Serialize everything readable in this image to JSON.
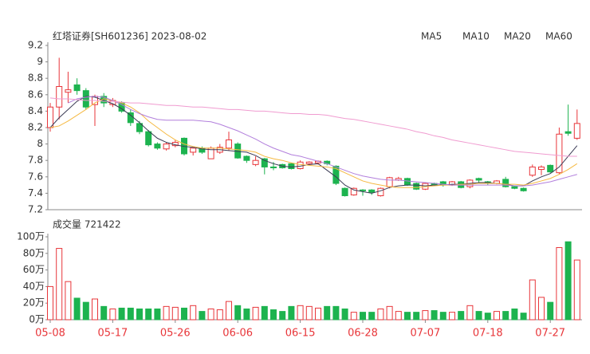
{
  "chart_data": [
    {
      "type": "candlestick",
      "title": "红塔证券[SH601236] 2023-08-02",
      "up_color": "#e8363a",
      "down_color": "#1db34f",
      "ylim": [
        7.2,
        9.2
      ],
      "yticks": [
        9.2,
        9,
        8.8,
        8.6,
        8.4,
        8.2,
        8,
        7.8,
        7.6,
        7.4,
        7.2
      ],
      "open": [
        8.2,
        8.45,
        8.63,
        8.72,
        8.65,
        8.48,
        8.58,
        8.48,
        8.5,
        8.38,
        8.25,
        8.15,
        8.0,
        7.94,
        7.98,
        8.07,
        7.9,
        7.95,
        7.82,
        7.9,
        7.95,
        8.0,
        7.85,
        7.75,
        7.82,
        7.72,
        7.75,
        7.76,
        7.7,
        7.76,
        7.77,
        7.79,
        7.73,
        7.46,
        7.38,
        7.44,
        7.44,
        7.37,
        7.48,
        7.56,
        7.58,
        7.52,
        7.45,
        7.52,
        7.54,
        7.5,
        7.54,
        7.48,
        7.58,
        7.54,
        7.52,
        7.57,
        7.48,
        7.46,
        7.62,
        7.69,
        7.74,
        7.65,
        8.15,
        8.07
      ],
      "high": [
        8.5,
        9.05,
        8.88,
        8.8,
        8.68,
        8.6,
        8.62,
        8.56,
        8.52,
        8.42,
        8.28,
        8.17,
        8.02,
        8.02,
        8.05,
        8.08,
        7.96,
        7.97,
        7.97,
        8.0,
        8.15,
        8.02,
        7.86,
        7.85,
        7.83,
        7.78,
        7.76,
        7.77,
        7.8,
        7.79,
        7.8,
        7.8,
        7.74,
        7.47,
        7.47,
        7.45,
        7.45,
        7.47,
        7.6,
        7.6,
        7.59,
        7.53,
        7.53,
        7.53,
        7.55,
        7.55,
        7.55,
        7.57,
        7.59,
        7.55,
        7.56,
        7.6,
        7.49,
        7.47,
        7.75,
        7.74,
        7.75,
        8.2,
        8.48,
        8.42
      ],
      "low": [
        8.15,
        8.3,
        8.5,
        8.6,
        8.42,
        8.22,
        8.45,
        8.45,
        8.38,
        8.22,
        8.12,
        7.97,
        7.93,
        7.92,
        7.96,
        7.86,
        7.86,
        7.88,
        7.82,
        7.88,
        7.92,
        7.82,
        7.77,
        7.73,
        7.63,
        7.68,
        7.7,
        7.69,
        7.69,
        7.74,
        7.75,
        7.74,
        7.5,
        7.36,
        7.37,
        7.37,
        7.38,
        7.36,
        7.46,
        7.55,
        7.49,
        7.44,
        7.44,
        7.49,
        7.48,
        7.49,
        7.46,
        7.46,
        7.52,
        7.5,
        7.51,
        7.47,
        7.45,
        7.42,
        7.6,
        7.62,
        7.65,
        7.63,
        8.1,
        8.05
      ],
      "close": [
        8.45,
        8.7,
        8.66,
        8.65,
        8.45,
        8.58,
        8.5,
        8.53,
        8.4,
        8.26,
        8.15,
        7.99,
        7.95,
        8.0,
        8.02,
        7.88,
        7.95,
        7.9,
        7.95,
        7.96,
        8.05,
        7.83,
        7.8,
        7.8,
        7.72,
        7.71,
        7.71,
        7.7,
        7.78,
        7.78,
        7.79,
        7.76,
        7.52,
        7.37,
        7.46,
        7.43,
        7.41,
        7.46,
        7.59,
        7.58,
        7.5,
        7.45,
        7.52,
        7.5,
        7.5,
        7.54,
        7.47,
        7.56,
        7.56,
        7.53,
        7.55,
        7.48,
        7.46,
        7.43,
        7.72,
        7.72,
        7.66,
        8.12,
        8.13,
        8.25
      ],
      "series": [
        {
          "name": "MA5",
          "color": "#3b3b55",
          "values": [
            8.2,
            8.32,
            8.42,
            8.52,
            8.58,
            8.57,
            8.53,
            8.49,
            8.43,
            8.35,
            8.26,
            8.16,
            8.07,
            8.02,
            7.99,
            7.97,
            7.96,
            7.94,
            7.93,
            7.93,
            7.92,
            7.91,
            7.9,
            7.86,
            7.8,
            7.76,
            7.73,
            7.72,
            7.73,
            7.75,
            7.76,
            7.68,
            7.6,
            7.5,
            7.44,
            7.42,
            7.4,
            7.43,
            7.47,
            7.49,
            7.5,
            7.5,
            7.49,
            7.5,
            7.5,
            7.51,
            7.51,
            7.52,
            7.53,
            7.53,
            7.52,
            7.51,
            7.49,
            7.49,
            7.55,
            7.6,
            7.64,
            7.72,
            7.85,
            7.98
          ]
        },
        {
          "name": "MA10",
          "color": "#f5b942",
          "values": [
            8.2,
            8.22,
            8.28,
            8.35,
            8.42,
            8.5,
            8.55,
            8.53,
            8.5,
            8.45,
            8.38,
            8.28,
            8.2,
            8.12,
            8.05,
            8.0,
            7.97,
            7.95,
            7.95,
            7.95,
            7.94,
            7.93,
            7.92,
            7.9,
            7.85,
            7.82,
            7.8,
            7.77,
            7.75,
            7.74,
            7.73,
            7.72,
            7.7,
            7.65,
            7.6,
            7.55,
            7.52,
            7.5,
            7.48,
            7.47,
            7.47,
            7.47,
            7.48,
            7.49,
            7.5,
            7.5,
            7.51,
            7.51,
            7.52,
            7.52,
            7.52,
            7.51,
            7.51,
            7.5,
            7.52,
            7.55,
            7.58,
            7.63,
            7.69,
            7.76
          ]
        },
        {
          "name": "MA20",
          "color": "#b27fdc",
          "values": [
            null,
            null,
            8.5,
            8.55,
            8.57,
            8.58,
            8.57,
            8.53,
            8.48,
            8.42,
            8.37,
            8.33,
            8.3,
            8.29,
            8.29,
            8.29,
            8.29,
            8.28,
            8.27,
            8.24,
            8.2,
            8.16,
            8.11,
            8.06,
            8.0,
            7.95,
            7.91,
            7.87,
            7.85,
            7.82,
            7.79,
            7.76,
            7.72,
            7.68,
            7.64,
            7.61,
            7.59,
            7.57,
            7.56,
            7.56,
            7.55,
            7.54,
            7.53,
            7.52,
            7.51,
            7.5,
            7.5,
            7.5,
            7.5,
            7.5,
            7.5,
            7.5,
            7.49,
            7.49,
            7.5,
            7.52,
            7.54,
            7.57,
            7.6,
            7.63
          ]
        },
        {
          "name": "MA60",
          "color": "#f09bd0",
          "values": [
            8.56,
            8.55,
            8.55,
            8.54,
            8.53,
            8.53,
            8.52,
            8.52,
            8.51,
            8.5,
            8.5,
            8.49,
            8.48,
            8.47,
            8.47,
            8.46,
            8.45,
            8.45,
            8.44,
            8.43,
            8.42,
            8.42,
            8.41,
            8.4,
            8.4,
            8.39,
            8.38,
            8.37,
            8.37,
            8.36,
            8.36,
            8.35,
            8.33,
            8.31,
            8.3,
            8.28,
            8.26,
            8.24,
            8.22,
            8.2,
            8.18,
            8.15,
            8.13,
            8.1,
            8.08,
            8.05,
            8.03,
            8.01,
            7.99,
            7.97,
            7.95,
            7.93,
            7.91,
            7.9,
            7.89,
            7.88,
            7.87,
            7.86,
            7.85,
            7.85
          ]
        }
      ]
    },
    {
      "type": "bar",
      "title": "成交量 721422",
      "categories": [
        "05-08",
        null,
        null,
        null,
        null,
        null,
        null,
        "05-17",
        null,
        null,
        null,
        null,
        null,
        null,
        "05-26",
        null,
        null,
        null,
        null,
        null,
        null,
        "06-06",
        null,
        null,
        null,
        null,
        null,
        null,
        "06-15",
        null,
        null,
        null,
        null,
        null,
        null,
        "06-28",
        null,
        null,
        null,
        null,
        null,
        null,
        "07-07",
        null,
        null,
        null,
        null,
        null,
        null,
        "07-18",
        null,
        null,
        null,
        null,
        null,
        null,
        "07-27",
        null,
        null,
        null
      ],
      "values": [
        40,
        86,
        46,
        26,
        21,
        25,
        16,
        13,
        14,
        14,
        13,
        13,
        13,
        16,
        15,
        14,
        17,
        10,
        13,
        12,
        22,
        17,
        13,
        15,
        16,
        12,
        10,
        16,
        17,
        16,
        14,
        16,
        16,
        13,
        9,
        9,
        9,
        13,
        16,
        10,
        9,
        9,
        11,
        11,
        9,
        9,
        10,
        17,
        10,
        8,
        10,
        10,
        13,
        8,
        48,
        27,
        21,
        87,
        94,
        72
      ],
      "ylim": [
        0,
        100
      ],
      "yticks": [
        {
          "value": 100,
          "label": "100万"
        },
        {
          "value": 80,
          "label": "80万"
        },
        {
          "value": 60,
          "label": "60万"
        },
        {
          "value": 40,
          "label": "40万"
        },
        {
          "value": 20,
          "label": "20万"
        },
        {
          "value": 0,
          "label": "0万"
        }
      ]
    }
  ]
}
